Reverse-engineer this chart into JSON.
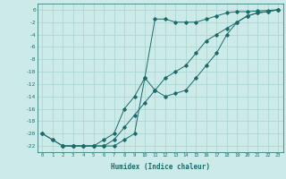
{
  "xlabel": "Humidex (Indice chaleur)",
  "ylabel": "",
  "bg_color": "#cceae7",
  "grid_color": "#aed6d2",
  "line_color": "#1a6b6b",
  "xlim": [
    -0.5,
    23.5
  ],
  "ylim": [
    -23,
    1
  ],
  "xticks": [
    0,
    1,
    2,
    3,
    4,
    5,
    6,
    7,
    8,
    9,
    10,
    11,
    12,
    13,
    14,
    15,
    16,
    17,
    18,
    19,
    20,
    21,
    22,
    23
  ],
  "yticks": [
    0,
    -2,
    -4,
    -6,
    -8,
    -10,
    -12,
    -14,
    -16,
    -18,
    -20,
    -22
  ],
  "line1_x": [
    0,
    1,
    2,
    3,
    4,
    5,
    6,
    7,
    8,
    9,
    10,
    11,
    12,
    13,
    14,
    15,
    16,
    17,
    18,
    19,
    20,
    21,
    22,
    23
  ],
  "line1_y": [
    -20,
    -21,
    -22,
    -22,
    -22,
    -22,
    -22,
    -22,
    -21,
    -20,
    -11,
    -1.5,
    -1.5,
    -2,
    -2,
    -2,
    -1.5,
    -1,
    -0.5,
    -0.3,
    -0.3,
    -0.2,
    -0.1,
    0
  ],
  "line2_x": [
    0,
    1,
    2,
    3,
    4,
    5,
    6,
    7,
    8,
    9,
    10,
    11,
    12,
    13,
    14,
    15,
    16,
    17,
    18,
    19,
    20,
    21,
    22,
    23
  ],
  "line2_y": [
    -20,
    -21,
    -22,
    -22,
    -22,
    -22,
    -21,
    -20,
    -16,
    -14,
    -11,
    -13,
    -14,
    -13.5,
    -13,
    -11,
    -9,
    -7,
    -4,
    -2,
    -1,
    -0.5,
    -0.3,
    0
  ],
  "line3_x": [
    2,
    3,
    4,
    5,
    6,
    7,
    8,
    9,
    10,
    11,
    12,
    13,
    14,
    15,
    16,
    17,
    18,
    19,
    20,
    21,
    22,
    23
  ],
  "line3_y": [
    -22,
    -22,
    -22,
    -22,
    -22,
    -21,
    -19,
    -17,
    -15,
    -13,
    -11,
    -10,
    -9,
    -7,
    -5,
    -4,
    -3,
    -2,
    -1,
    -0.5,
    -0.3,
    0
  ]
}
